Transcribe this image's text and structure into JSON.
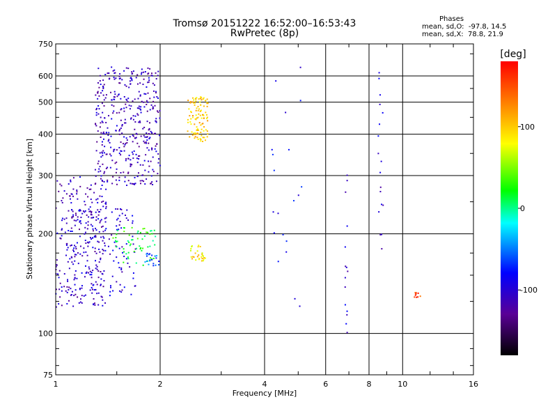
{
  "header": {
    "title_line1": "Tromsø 20151222 16:52:00–16:53:43",
    "title_line2": "RwPretec (8p)"
  },
  "stats": {
    "heading": "Phases",
    "o_mode": "mean, sd,O:  -97.8, 14.5",
    "x_mode": "mean, sd,X:  78.8, 21.9"
  },
  "chart_data": {
    "type": "scatter",
    "xlabel": "Frequency [MHz]",
    "ylabel": "Stationary phase Virtual Height [km]",
    "x_scale": "log2",
    "y_scale": "log",
    "xlim": [
      1,
      16
    ],
    "ylim": [
      75,
      750
    ],
    "x_ticks": [
      1,
      2,
      4,
      6,
      8,
      10,
      16
    ],
    "y_ticks": [
      75,
      100,
      200,
      300,
      400,
      500,
      600,
      750
    ],
    "grid": true,
    "colorbar": {
      "unit": "[deg]",
      "range": [
        -180,
        180
      ],
      "ticks": [
        100,
        0,
        -100
      ],
      "colors": [
        "#000000",
        "#5a0096",
        "#0000ff",
        "#00ffff",
        "#00ff00",
        "#ffff00",
        "#ff7f00",
        "#ff0000"
      ]
    },
    "series": [
      {
        "x_range": [
          1.0,
          1.4
        ],
        "y_range": [
          120,
          300
        ],
        "phase": -110,
        "count": 260
      },
      {
        "x_range": [
          1.3,
          2.0
        ],
        "y_range": [
          280,
          640
        ],
        "phase": -110,
        "count": 420
      },
      {
        "x_range": [
          1.1,
          1.7
        ],
        "y_range": [
          130,
          240
        ],
        "phase": -100,
        "count": 140
      },
      {
        "x_range": [
          1.45,
          1.95
        ],
        "y_range": [
          160,
          210
        ],
        "phase": 20,
        "count": 60
      },
      {
        "x_range": [
          1.8,
          2.0
        ],
        "y_range": [
          160,
          175
        ],
        "phase": -60,
        "count": 20
      },
      {
        "x_range": [
          2.4,
          2.75
        ],
        "y_range": [
          380,
          520
        ],
        "phase": 100,
        "count": 110
      },
      {
        "x_range": [
          2.45,
          2.7
        ],
        "y_range": [
          165,
          185
        ],
        "phase": 90,
        "count": 30
      },
      {
        "x_range": [
          10.8,
          11.3
        ],
        "y_range": [
          128,
          133
        ],
        "phase": 150,
        "count": 10
      },
      {
        "x_range": [
          6.8,
          7.0
        ],
        "y_range": [
          100,
          350
        ],
        "phase": -100,
        "count": 15
      },
      {
        "x_range": [
          8.5,
          8.8
        ],
        "y_range": [
          130,
          650
        ],
        "phase": -100,
        "count": 18
      },
      {
        "x_range": [
          4.2,
          5.2
        ],
        "y_range": [
          110,
          640
        ],
        "phase": -90,
        "count": 20
      }
    ]
  }
}
